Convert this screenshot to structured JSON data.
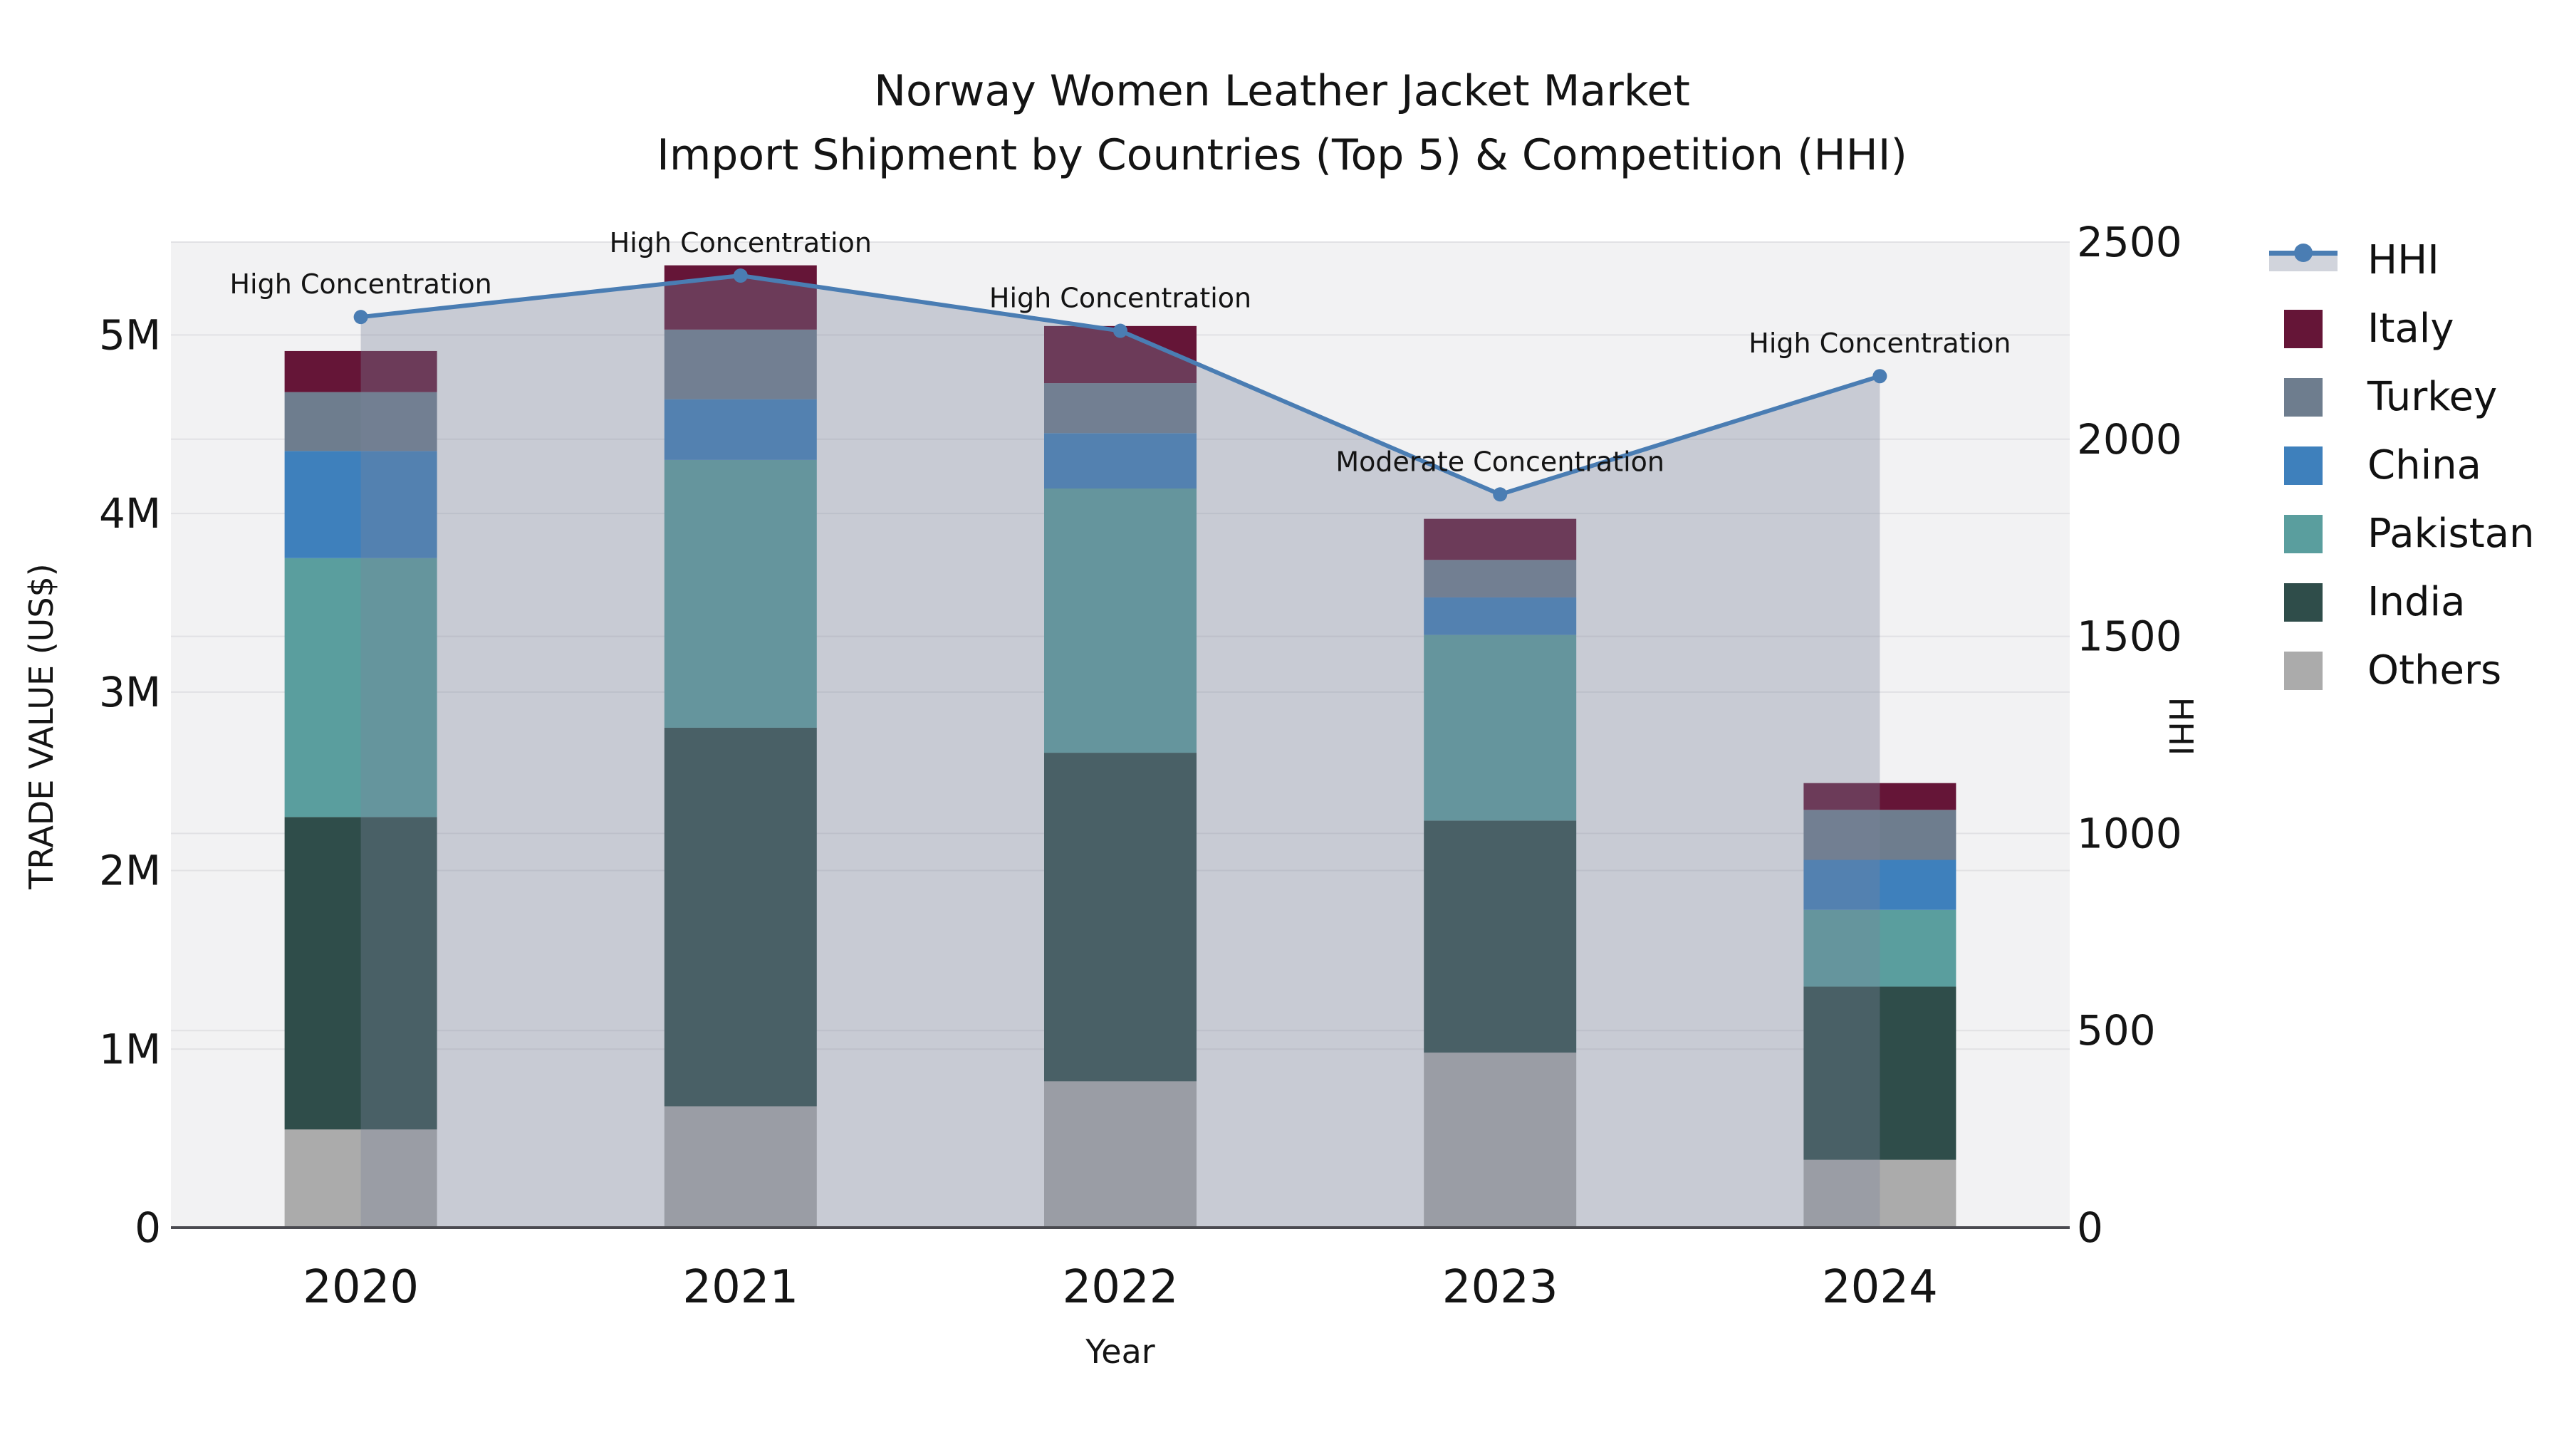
{
  "chart_data": {
    "type": "bar",
    "stacked": true,
    "title_line1": "Norway Women Leather Jacket Market",
    "title_line2": "Import Shipment by Countries (Top 5) & Competition (HHI)",
    "xlabel": "Year",
    "ylabel_left": "TRADE VALUE (US$)",
    "ylabel_right": "HHI",
    "categories": [
      "2020",
      "2021",
      "2022",
      "2023",
      "2024"
    ],
    "series": [
      {
        "name": "Others",
        "color": "#ababab",
        "values": [
          550000,
          680000,
          820000,
          980000,
          380000
        ]
      },
      {
        "name": "India",
        "color": "#2f4d4a",
        "values": [
          1750000,
          2120000,
          1840000,
          1300000,
          970000
        ]
      },
      {
        "name": "Pakistan",
        "color": "#5a9e9e",
        "values": [
          1450000,
          1500000,
          1480000,
          1040000,
          430000
        ]
      },
      {
        "name": "China",
        "color": "#3e80bc",
        "values": [
          600000,
          340000,
          310000,
          210000,
          280000
        ]
      },
      {
        "name": "Turkey",
        "color": "#6e7d8e",
        "values": [
          330000,
          390000,
          280000,
          210000,
          280000
        ]
      },
      {
        "name": "Italy",
        "color": "#651537",
        "values": [
          230000,
          360000,
          320000,
          230000,
          150000
        ]
      }
    ],
    "line_series": {
      "name": "HHI",
      "color": "#4a7db3",
      "area_fill": "rgba(124,132,156,0.35)",
      "values": [
        2310,
        2415,
        2275,
        1860,
        2160
      ]
    },
    "annotations": [
      "High Concentration",
      "High Concentration",
      "High Concentration",
      "Moderate Concentration",
      "High Concentration"
    ],
    "axis_left": {
      "max": 5520000,
      "tick_values": [
        0,
        1000000,
        2000000,
        3000000,
        4000000,
        5000000
      ],
      "tick_labels": [
        "0",
        "1M",
        "2M",
        "3M",
        "4M",
        "5M"
      ]
    },
    "axis_right": {
      "max": 2500,
      "tick_values": [
        0,
        500,
        1000,
        1500,
        2000,
        2500
      ],
      "tick_labels": [
        "0",
        "500",
        "1000",
        "1500",
        "2000",
        "2500"
      ]
    },
    "legend_position": "right",
    "grid": true,
    "style": {
      "plot_background": "#f2f2f3",
      "gridline_color": "#e1e1e4",
      "axis_line_color": "#4a4a50",
      "text_color": "#141414"
    }
  }
}
